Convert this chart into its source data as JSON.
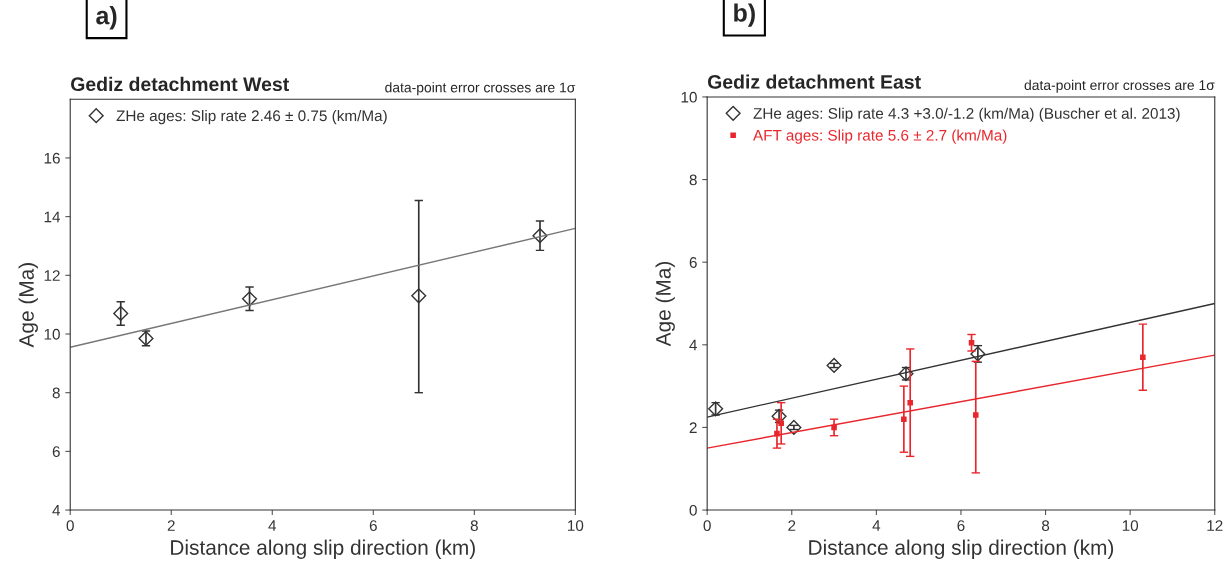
{
  "chart_data": [
    {
      "type": "scatter",
      "title": "Gediz detachment West",
      "subtitle": "data-point error crosses are 1σ",
      "xlabel": "Distance along slip direction (km)",
      "ylabel": "Age (Ma)",
      "annotations": [
        "a)"
      ],
      "xlim": [
        0,
        10
      ],
      "xticks": [
        0,
        2,
        4,
        6,
        8,
        10
      ],
      "ylim": [
        4,
        18
      ],
      "yticks": [
        4,
        6,
        8,
        10,
        12,
        14,
        16
      ],
      "grid": false,
      "legend": "top left",
      "series": [
        {
          "name": "ZHe ages: Slip rate 2.46 ± 0.75 (km/Ma)",
          "color": "#333333",
          "marker": "diamond",
          "x": [
            1.0,
            1.5,
            3.55,
            6.9,
            9.3
          ],
          "values": [
            10.7,
            9.85,
            11.2,
            11.3,
            13.35
          ],
          "errors": [
            0.4,
            0.25,
            0.4,
            [
              8.0,
              14.55
            ],
            0.5
          ]
        },
        {
          "type": "line",
          "color": "#777777",
          "x": [
            0,
            10
          ],
          "values": [
            9.55,
            13.6
          ]
        }
      ]
    },
    {
      "type": "scatter",
      "title": "Gediz detachment East",
      "subtitle": "data-point error crosses are 1σ",
      "xlabel": "Distance along slip direction (km)",
      "ylabel": "Age (Ma)",
      "annotations": [
        "b)"
      ],
      "xlim": [
        0,
        12
      ],
      "xticks": [
        0,
        2,
        4,
        6,
        8,
        10,
        12
      ],
      "ylim": [
        0,
        10
      ],
      "yticks": [
        0,
        2,
        4,
        6,
        8,
        10
      ],
      "grid": false,
      "legend": "top left",
      "series": [
        {
          "name": "ZHe ages: Slip rate 4.3 +3.0/-1.2 (km/Ma) (Buscher et al. 2013)",
          "color": "#333333",
          "marker": "diamond",
          "x": [
            0.2,
            1.7,
            2.05,
            3.0,
            4.7,
            6.4
          ],
          "values": [
            2.45,
            2.27,
            2.0,
            3.5,
            3.3,
            3.78
          ],
          "errors": [
            0.15,
            0.15,
            0.05,
            0.05,
            0.15,
            0.2
          ]
        },
        {
          "name": "AFT ages: Slip rate 5.6 ± 2.7 (km/Ma)",
          "color": "#e8262c",
          "marker": "square",
          "x": [
            1.65,
            1.75,
            3.0,
            4.65,
            4.8,
            6.25,
            6.35,
            10.3
          ],
          "values": [
            1.85,
            2.1,
            2.0,
            2.2,
            2.6,
            4.05,
            2.3,
            3.7
          ],
          "errors": [
            0.35,
            [
              1.6,
              2.6
            ],
            0.2,
            [
              1.4,
              3.0
            ],
            [
              1.3,
              3.9
            ],
            0.2,
            [
              0.9,
              3.6
            ],
            0.8
          ]
        },
        {
          "type": "line",
          "color": "#333333",
          "x": [
            0,
            12
          ],
          "values": [
            2.25,
            5.0
          ]
        },
        {
          "type": "line",
          "color": "#e8262c",
          "x": [
            0,
            12
          ],
          "values": [
            1.5,
            3.75
          ]
        }
      ]
    }
  ]
}
